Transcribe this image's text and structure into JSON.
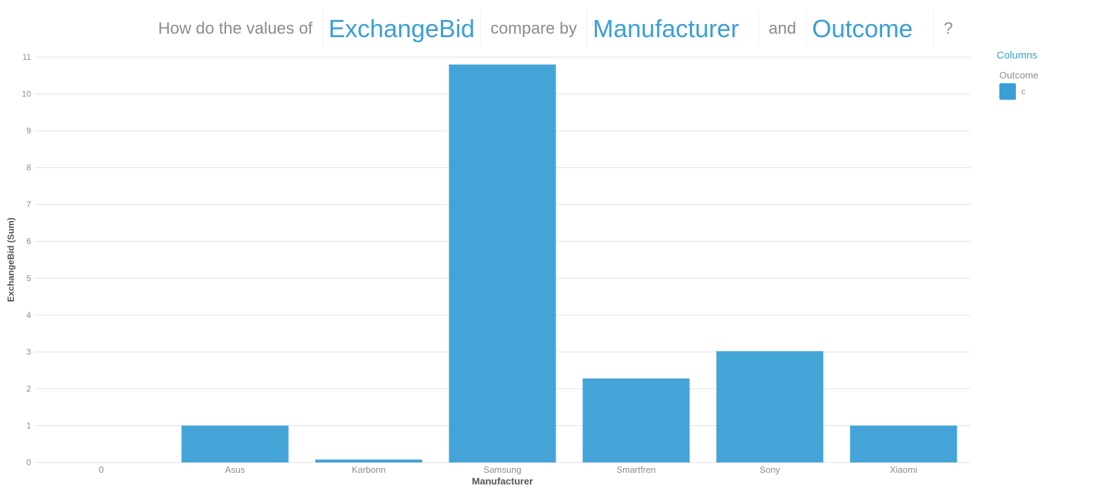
{
  "question": {
    "prefix": "How do the values of",
    "field1": "ExchangeBid",
    "middle": "compare by",
    "field2": "Manufacturer",
    "conj": "and",
    "field3": "Outcome",
    "suffix": "?"
  },
  "legend": {
    "title": "Columns",
    "subtitle": "Outcome",
    "items": [
      {
        "label": "c",
        "color": "#3a9fd6"
      }
    ]
  },
  "colors": {
    "bar": "#3a9fd6",
    "grid": "#e0e0e0",
    "tick_text": "#8c8c8c",
    "axis_title": "#555555"
  },
  "chart_data": {
    "type": "bar",
    "categories": [
      "0",
      "Asus",
      "Karbonn",
      "Samsung",
      "Smartfren",
      "Sony",
      "Xiaomi"
    ],
    "series": [
      {
        "name": "c",
        "values": [
          0,
          1,
          0.08,
          10.8,
          2.28,
          3.02,
          1
        ]
      }
    ],
    "xlabel": "Manufacturer",
    "ylabel": "ExchangeBid (Sum)",
    "ylim": [
      0,
      11
    ],
    "yticks": [
      0,
      1,
      2,
      3,
      4,
      5,
      6,
      7,
      8,
      9,
      10,
      11
    ],
    "grid": true,
    "legend_position": "top-right"
  }
}
